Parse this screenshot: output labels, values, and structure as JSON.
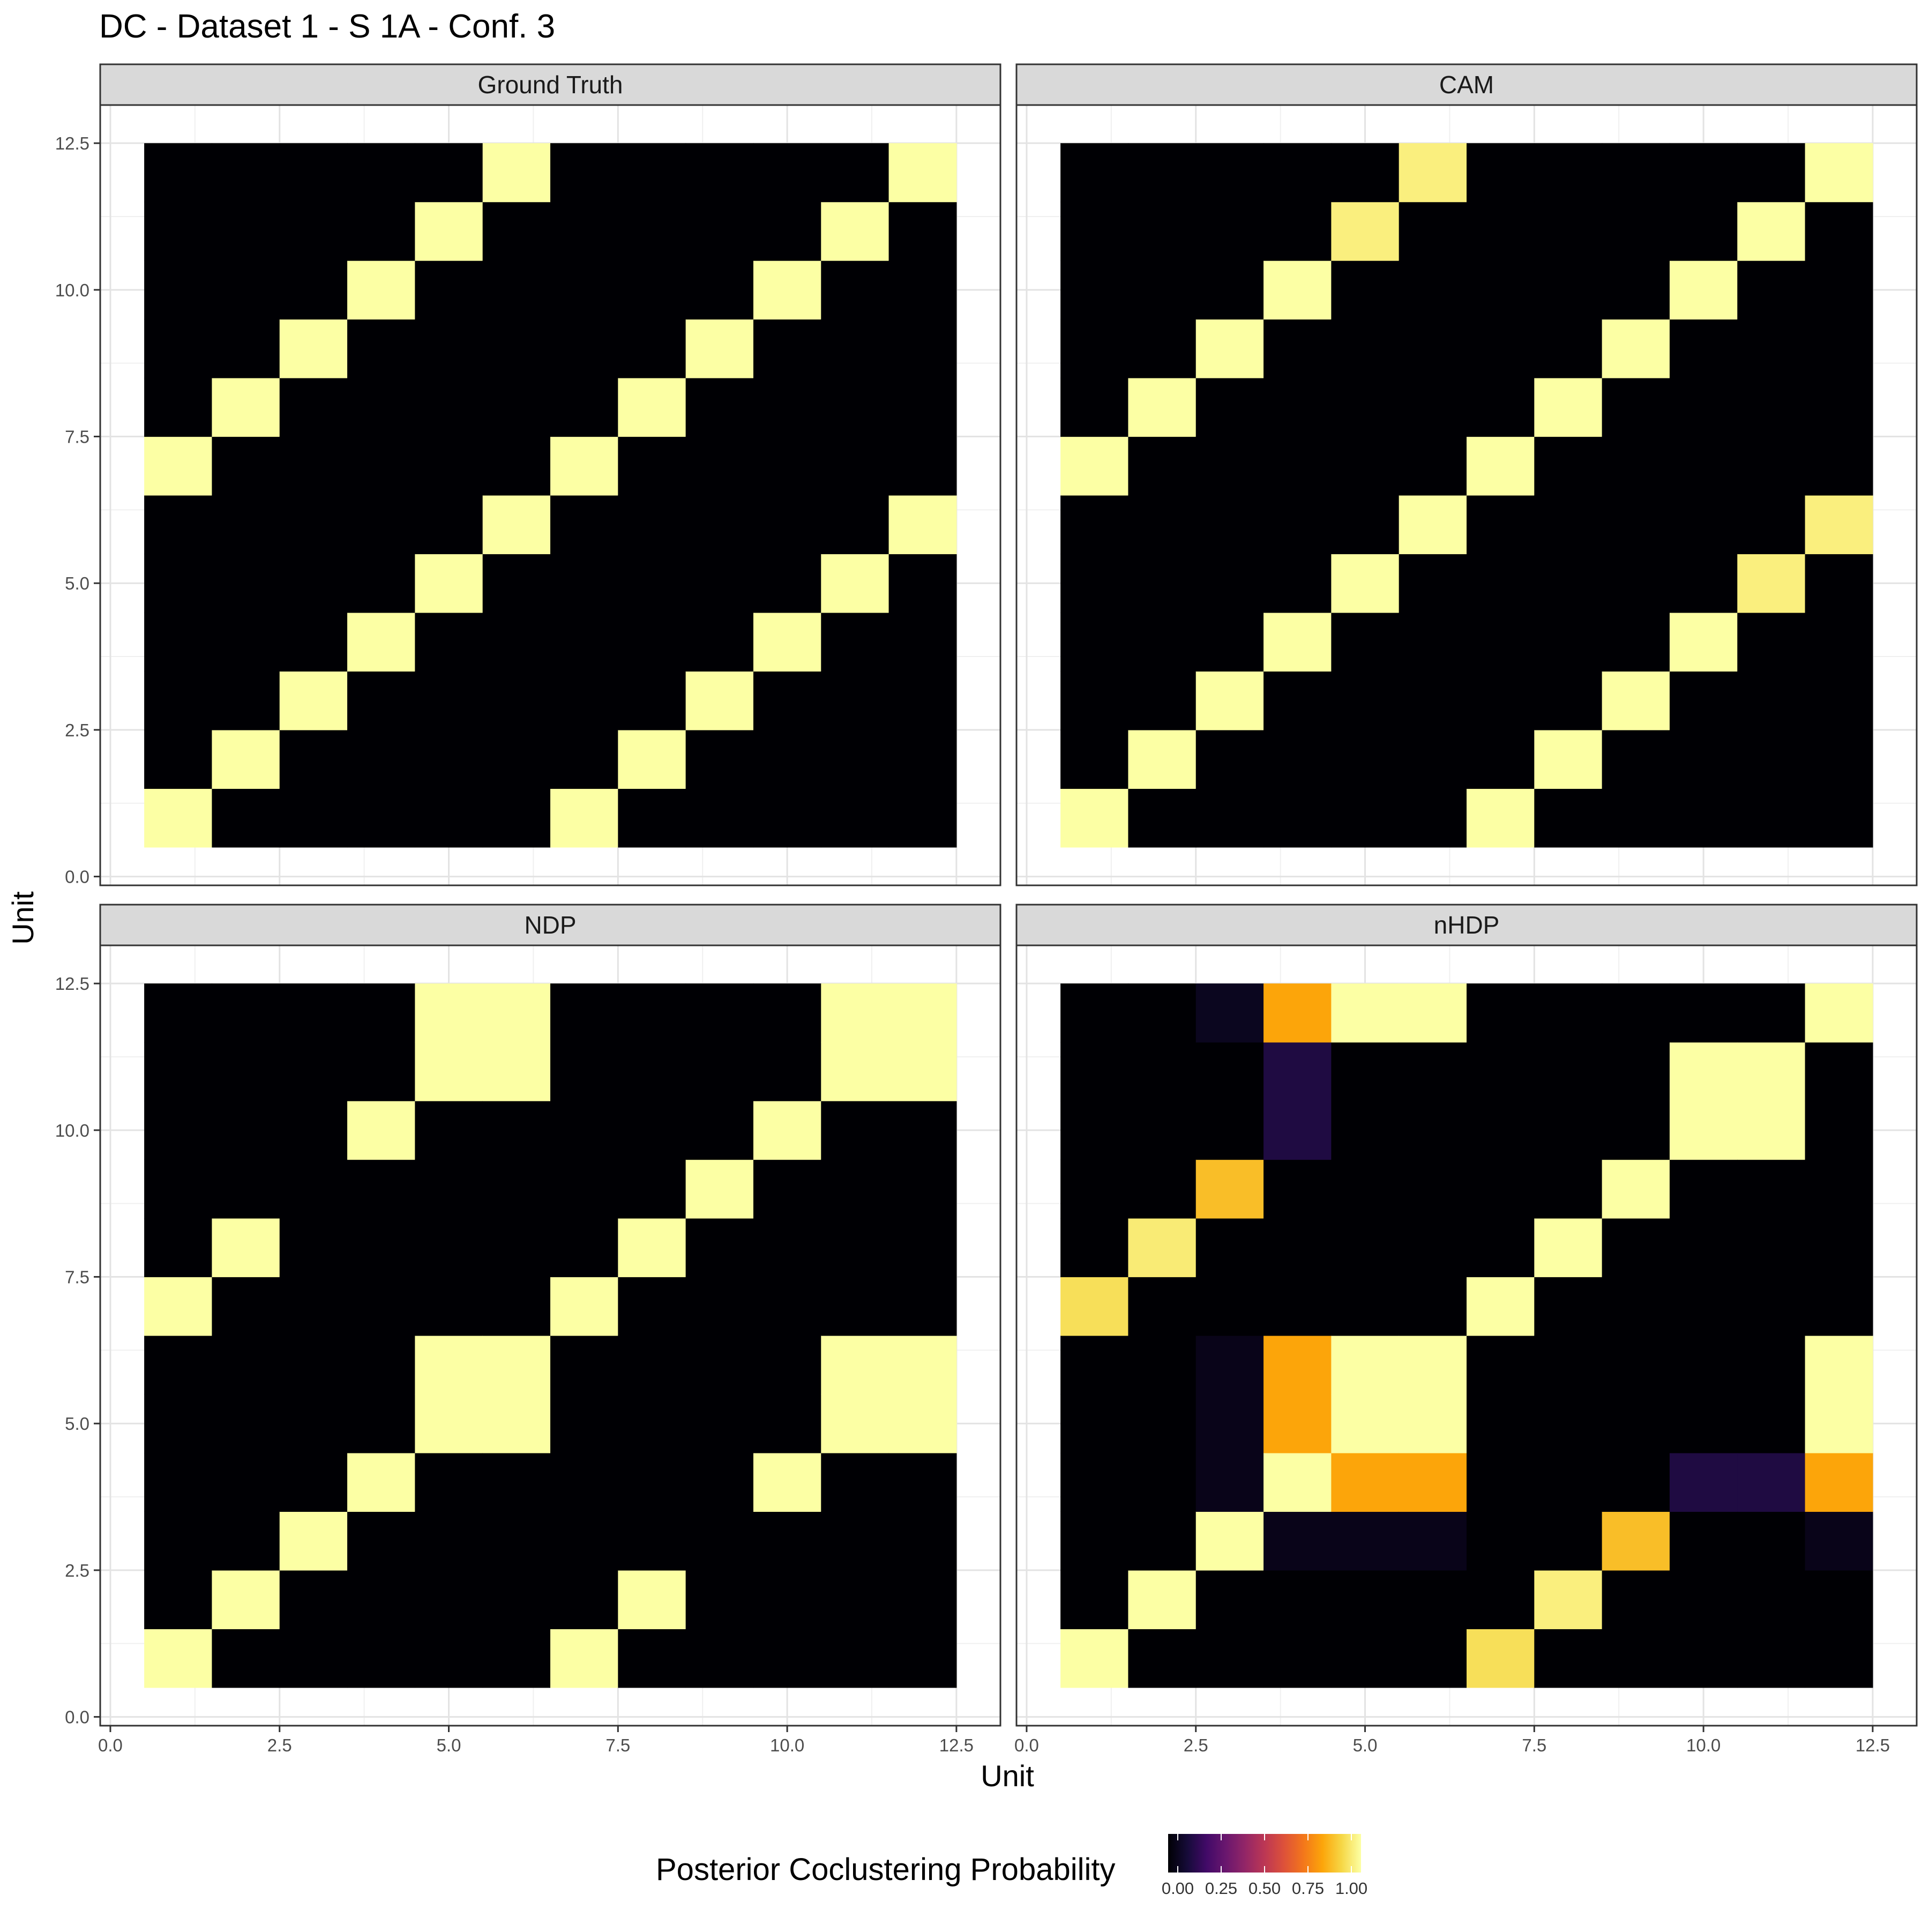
{
  "title": "DC - Dataset 1 - S 1A - Conf. 3",
  "xlabel": "Unit",
  "ylabel": "Unit",
  "legend": {
    "title": "Posterior Coclustering Probability",
    "ticks": [
      "0.00",
      "0.25",
      "0.50",
      "0.75",
      "1.00"
    ],
    "tick_values": [
      0,
      0.25,
      0.5,
      0.75,
      1
    ],
    "colormap": "inferno",
    "position": "bottom"
  },
  "chart_data": {
    "type": "heatmap",
    "facets": [
      {
        "name": "Ground Truth",
        "matrix": [
          [
            1,
            0,
            0,
            0,
            0,
            0,
            1,
            0,
            0,
            0,
            0,
            0
          ],
          [
            0,
            1,
            0,
            0,
            0,
            0,
            0,
            1,
            0,
            0,
            0,
            0
          ],
          [
            0,
            0,
            1,
            0,
            0,
            0,
            0,
            0,
            1,
            0,
            0,
            0
          ],
          [
            0,
            0,
            0,
            1,
            0,
            0,
            0,
            0,
            0,
            1,
            0,
            0
          ],
          [
            0,
            0,
            0,
            0,
            1,
            0,
            0,
            0,
            0,
            0,
            1,
            0
          ],
          [
            0,
            0,
            0,
            0,
            0,
            1,
            0,
            0,
            0,
            0,
            0,
            1
          ],
          [
            1,
            0,
            0,
            0,
            0,
            0,
            1,
            0,
            0,
            0,
            0,
            0
          ],
          [
            0,
            1,
            0,
            0,
            0,
            0,
            0,
            1,
            0,
            0,
            0,
            0
          ],
          [
            0,
            0,
            1,
            0,
            0,
            0,
            0,
            0,
            1,
            0,
            0,
            0
          ],
          [
            0,
            0,
            0,
            1,
            0,
            0,
            0,
            0,
            0,
            1,
            0,
            0
          ],
          [
            0,
            0,
            0,
            0,
            1,
            0,
            0,
            0,
            0,
            0,
            1,
            0
          ],
          [
            0,
            0,
            0,
            0,
            0,
            1,
            0,
            0,
            0,
            0,
            0,
            1
          ]
        ]
      },
      {
        "name": "CAM",
        "matrix": [
          [
            1,
            0,
            0,
            0,
            0,
            0,
            1,
            0,
            0,
            0,
            0,
            0
          ],
          [
            0,
            1,
            0,
            0,
            0,
            0,
            0,
            1,
            0,
            0,
            0,
            0
          ],
          [
            0,
            0,
            1,
            0,
            0,
            0,
            0,
            0,
            1,
            0,
            0,
            0
          ],
          [
            0,
            0,
            0,
            1,
            0,
            0,
            0,
            0,
            0,
            1,
            0,
            0
          ],
          [
            0,
            0,
            0,
            0,
            1,
            0,
            0,
            0,
            0,
            0,
            0.96,
            0
          ],
          [
            0,
            0,
            0,
            0,
            0,
            1,
            0,
            0,
            0,
            0,
            0,
            0.96
          ],
          [
            1,
            0,
            0,
            0,
            0,
            0,
            1,
            0,
            0,
            0,
            0,
            0
          ],
          [
            0,
            1,
            0,
            0,
            0,
            0,
            0,
            1,
            0,
            0,
            0,
            0
          ],
          [
            0,
            0,
            1,
            0,
            0,
            0,
            0,
            0,
            1,
            0,
            0,
            0
          ],
          [
            0,
            0,
            0,
            1,
            0,
            0,
            0,
            0,
            0,
            1,
            0,
            0
          ],
          [
            0,
            0,
            0,
            0,
            0.96,
            0,
            0,
            0,
            0,
            0,
            1,
            0
          ],
          [
            0,
            0,
            0,
            0,
            0,
            0.96,
            0,
            0,
            0,
            0,
            0,
            1
          ]
        ]
      },
      {
        "name": "NDP",
        "matrix": [
          [
            1,
            0,
            0,
            0,
            0,
            0,
            1,
            0,
            0,
            0,
            0,
            0
          ],
          [
            0,
            1,
            0,
            0,
            0,
            0,
            0,
            1,
            0,
            0,
            0,
            0
          ],
          [
            0,
            0,
            1,
            0,
            0,
            0,
            0,
            0,
            0,
            0,
            0,
            0
          ],
          [
            0,
            0,
            0,
            1,
            0,
            0,
            0,
            0,
            0,
            1,
            0,
            0
          ],
          [
            0,
            0,
            0,
            0,
            1,
            1,
            0,
            0,
            0,
            0,
            1,
            1
          ],
          [
            0,
            0,
            0,
            0,
            1,
            1,
            0,
            0,
            0,
            0,
            1,
            1
          ],
          [
            1,
            0,
            0,
            0,
            0,
            0,
            1,
            0,
            0,
            0,
            0,
            0
          ],
          [
            0,
            1,
            0,
            0,
            0,
            0,
            0,
            1,
            0,
            0,
            0,
            0
          ],
          [
            0,
            0,
            0,
            0,
            0,
            0,
            0,
            0,
            1,
            0,
            0,
            0
          ],
          [
            0,
            0,
            0,
            1,
            0,
            0,
            0,
            0,
            0,
            1,
            0,
            0
          ],
          [
            0,
            0,
            0,
            0,
            1,
            1,
            0,
            0,
            0,
            0,
            1,
            1
          ],
          [
            0,
            0,
            0,
            0,
            1,
            1,
            0,
            0,
            0,
            0,
            1,
            1
          ]
        ]
      },
      {
        "name": "nHDP",
        "matrix": [
          [
            1,
            0,
            0,
            0,
            0,
            0,
            0.92,
            0,
            0,
            0,
            0,
            0
          ],
          [
            0,
            1,
            0,
            0,
            0,
            0,
            0,
            0.95,
            0,
            0,
            0,
            0
          ],
          [
            0,
            0,
            1,
            0.04,
            0.04,
            0.04,
            0,
            0,
            0.85,
            0,
            0,
            0.05
          ],
          [
            0,
            0,
            0.04,
            1,
            0.8,
            0.8,
            0,
            0,
            0,
            0.12,
            0.12,
            0.8
          ],
          [
            0,
            0,
            0.04,
            0.8,
            1,
            1,
            0,
            0,
            0,
            0,
            0,
            1
          ],
          [
            0,
            0,
            0.04,
            0.8,
            1,
            1,
            0,
            0,
            0,
            0,
            0,
            1
          ],
          [
            0.92,
            0,
            0,
            0,
            0,
            0,
            1,
            0,
            0,
            0,
            0,
            0
          ],
          [
            0,
            0.96,
            0,
            0,
            0,
            0,
            0,
            1,
            0,
            0,
            0,
            0
          ],
          [
            0,
            0,
            0.85,
            0,
            0,
            0,
            0,
            0,
            1,
            0,
            0,
            0
          ],
          [
            0,
            0,
            0,
            0.12,
            0,
            0,
            0,
            0,
            0,
            1,
            1,
            0
          ],
          [
            0,
            0,
            0,
            0.12,
            0,
            0,
            0,
            0,
            0,
            1,
            1,
            0
          ],
          [
            0,
            0,
            0.04,
            0.8,
            1,
            1,
            0,
            0,
            0,
            0,
            0,
            1
          ]
        ]
      }
    ],
    "x_range": [
      0,
      12.5
    ],
    "y_range": [
      0,
      12.5
    ],
    "x_ticks": [
      "0.0",
      "2.5",
      "5.0",
      "7.5",
      "10.0",
      "12.5"
    ],
    "y_ticks": [
      "0.0",
      "2.5",
      "5.0",
      "7.5",
      "10.0",
      "12.5"
    ],
    "tick_values": [
      0,
      2.5,
      5,
      7.5,
      10,
      12.5
    ],
    "grid": true
  }
}
